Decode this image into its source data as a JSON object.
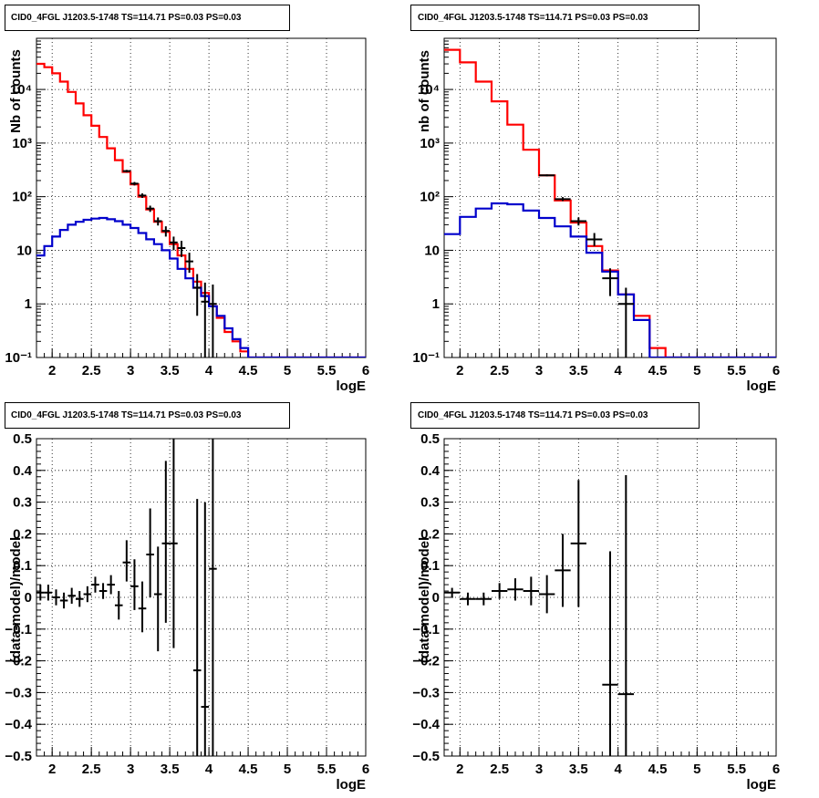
{
  "chart_data": [
    {
      "type": "line",
      "title": "CID0_4FGL J1203.5-1748 TS=114.71 PS=0.03 PS=0.03",
      "xlabel": "logE",
      "ylabel": "Nb of counts",
      "xlim": [
        1.8,
        6.0
      ],
      "ylim": [
        0.1,
        90000
      ],
      "yscale": "log",
      "grid": true,
      "xticks": [
        "2",
        "2.5",
        "3",
        "3.5",
        "4",
        "4.5",
        "5",
        "5.5",
        "6"
      ],
      "yticks": [
        "10⁻¹",
        "1",
        "10",
        "10²",
        "10³",
        "10⁴"
      ],
      "bin_edges": [
        1.8,
        1.9,
        2.0,
        2.1,
        2.2,
        2.3,
        2.4,
        2.5,
        2.6,
        2.7,
        2.8,
        2.9,
        3.0,
        3.1,
        3.2,
        3.3,
        3.4,
        3.5,
        3.6,
        3.7,
        3.8,
        3.9,
        4.0,
        4.1,
        4.2,
        4.3,
        4.4,
        4.5,
        6.0
      ],
      "series": [
        {
          "color": "#ff0000",
          "values": [
            30000,
            26000,
            20000,
            14000,
            9000,
            5500,
            3300,
            2100,
            1300,
            800,
            480,
            290,
            170,
            100,
            58,
            34,
            22,
            13,
            8,
            4.5,
            2.6,
            1.6,
            0.9,
            0.55,
            0.3,
            0.2,
            0.13,
            0.1
          ]
        },
        {
          "color": "#0000cc",
          "values": [
            8,
            12,
            18,
            24,
            30,
            34,
            37,
            39,
            40,
            38,
            35,
            30,
            26,
            21,
            16,
            13,
            10,
            7,
            4.5,
            3,
            2,
            1.4,
            0.9,
            0.6,
            0.35,
            0.22,
            0.15,
            0.1
          ]
        }
      ],
      "points": [
        {
          "x": 2.95,
          "y": 300,
          "xerr": 0.05,
          "lo": 285,
          "hi": 316
        },
        {
          "x": 3.05,
          "y": 175,
          "xerr": 0.05,
          "lo": 162,
          "hi": 188
        },
        {
          "x": 3.15,
          "y": 105,
          "xerr": 0.05,
          "lo": 95,
          "hi": 115
        },
        {
          "x": 3.25,
          "y": 60,
          "xerr": 0.05,
          "lo": 52,
          "hi": 68
        },
        {
          "x": 3.35,
          "y": 35,
          "xerr": 0.05,
          "lo": 29,
          "hi": 41
        },
        {
          "x": 3.45,
          "y": 23,
          "xerr": 0.05,
          "lo": 18,
          "hi": 28
        },
        {
          "x": 3.55,
          "y": 14,
          "xerr": 0.05,
          "lo": 10,
          "hi": 18
        },
        {
          "x": 3.65,
          "y": 11,
          "xerr": 0.05,
          "lo": 7.5,
          "hi": 15
        },
        {
          "x": 3.75,
          "y": 6.2,
          "xerr": 0.05,
          "lo": 3.8,
          "hi": 9
        },
        {
          "x": 3.85,
          "y": 2.0,
          "xerr": 0.05,
          "lo": 0.6,
          "hi": 3.6
        },
        {
          "x": 3.95,
          "y": 1.1,
          "xerr": 0.05,
          "lo": 0.1,
          "hi": 2.5
        },
        {
          "x": 4.05,
          "y": 1.0,
          "xerr": 0.05,
          "lo": 0.1,
          "hi": 2.3
        }
      ]
    },
    {
      "type": "line",
      "title": "CID0_4FGL J1203.5-1748 TS=114.71 PS=0.03 PS=0.03",
      "xlabel": "logE",
      "ylabel": "nb of counts",
      "xlim": [
        1.8,
        6.0
      ],
      "ylim": [
        0.1,
        90000
      ],
      "yscale": "log",
      "grid": true,
      "xticks": [
        "2",
        "2.5",
        "3",
        "3.5",
        "4",
        "4.5",
        "5",
        "5.5",
        "6"
      ],
      "yticks": [
        "10⁻¹",
        "1",
        "10",
        "10²",
        "10³",
        "10⁴"
      ],
      "bin_edges": [
        1.8,
        2.0,
        2.2,
        2.4,
        2.6,
        2.8,
        3.0,
        3.2,
        3.4,
        3.6,
        3.8,
        4.0,
        4.2,
        4.4,
        4.6,
        6.0
      ],
      "series": [
        {
          "color": "#ff0000",
          "values": [
            55000,
            32000,
            14000,
            6000,
            2200,
            750,
            250,
            85,
            33,
            12,
            4.2,
            1.5,
            0.6,
            0.15,
            0.1
          ]
        },
        {
          "color": "#0000cc",
          "values": [
            20,
            42,
            60,
            75,
            72,
            55,
            40,
            28,
            18,
            9,
            4,
            1.5,
            0.5,
            0.1,
            0.1
          ]
        }
      ],
      "points": [
        {
          "x": 3.1,
          "y": 250,
          "xerr": 0.1,
          "lo": 240,
          "hi": 260
        },
        {
          "x": 3.3,
          "y": 90,
          "xerr": 0.1,
          "lo": 83,
          "hi": 98
        },
        {
          "x": 3.5,
          "y": 35,
          "xerr": 0.1,
          "lo": 29,
          "hi": 41
        },
        {
          "x": 3.7,
          "y": 16,
          "xerr": 0.1,
          "lo": 12,
          "hi": 21
        },
        {
          "x": 3.9,
          "y": 3.0,
          "xerr": 0.1,
          "lo": 1.4,
          "hi": 4.6
        },
        {
          "x": 4.1,
          "y": 1.0,
          "xerr": 0.1,
          "lo": 0.1,
          "hi": 2.0
        }
      ]
    },
    {
      "type": "scatter",
      "title": "CID0_4FGL J1203.5-1748 TS=114.71 PS=0.03 PS=0.03",
      "xlabel": "logE",
      "ylabel": "(data-model)/model",
      "xlim": [
        1.8,
        6.0
      ],
      "ylim": [
        -0.5,
        0.5
      ],
      "grid": true,
      "xticks": [
        "2",
        "2.5",
        "3",
        "3.5",
        "4",
        "4.5",
        "5",
        "5.5",
        "6"
      ],
      "yticks": [
        "−0.5",
        "−0.4",
        "−0.3",
        "−0.2",
        "−0.1",
        "0",
        "0.1",
        "0.2",
        "0.3",
        "0.4",
        "0.5"
      ],
      "points": [
        {
          "x": 1.85,
          "y": 0.015,
          "xerr": 0.05,
          "lo": -0.01,
          "hi": 0.04
        },
        {
          "x": 1.95,
          "y": 0.015,
          "xerr": 0.05,
          "lo": -0.01,
          "hi": 0.04
        },
        {
          "x": 2.05,
          "y": 0.0,
          "xerr": 0.05,
          "lo": -0.025,
          "hi": 0.025
        },
        {
          "x": 2.15,
          "y": -0.01,
          "xerr": 0.05,
          "lo": -0.035,
          "hi": 0.015
        },
        {
          "x": 2.25,
          "y": 0.005,
          "xerr": 0.05,
          "lo": -0.02,
          "hi": 0.03
        },
        {
          "x": 2.35,
          "y": -0.005,
          "xerr": 0.05,
          "lo": -0.03,
          "hi": 0.02
        },
        {
          "x": 2.45,
          "y": 0.01,
          "xerr": 0.05,
          "lo": -0.015,
          "hi": 0.035
        },
        {
          "x": 2.55,
          "y": 0.04,
          "xerr": 0.05,
          "lo": 0.015,
          "hi": 0.065
        },
        {
          "x": 2.65,
          "y": 0.02,
          "xerr": 0.05,
          "lo": -0.005,
          "hi": 0.045
        },
        {
          "x": 2.75,
          "y": 0.04,
          "xerr": 0.05,
          "lo": 0.01,
          "hi": 0.07
        },
        {
          "x": 2.85,
          "y": -0.025,
          "xerr": 0.05,
          "lo": -0.07,
          "hi": 0.02
        },
        {
          "x": 2.95,
          "y": 0.11,
          "xerr": 0.05,
          "lo": 0.05,
          "hi": 0.18
        },
        {
          "x": 3.05,
          "y": 0.035,
          "xerr": 0.05,
          "lo": -0.04,
          "hi": 0.12
        },
        {
          "x": 3.15,
          "y": -0.035,
          "xerr": 0.05,
          "lo": -0.11,
          "hi": 0.05
        },
        {
          "x": 3.25,
          "y": 0.135,
          "xerr": 0.05,
          "lo": 0.0,
          "hi": 0.28
        },
        {
          "x": 3.35,
          "y": 0.01,
          "xerr": 0.05,
          "lo": -0.17,
          "hi": 0.16
        },
        {
          "x": 3.45,
          "y": 0.17,
          "xerr": 0.05,
          "lo": -0.08,
          "hi": 0.43
        },
        {
          "x": 3.55,
          "y": 0.17,
          "xerr": 0.05,
          "lo": -0.16,
          "hi": 0.5
        },
        {
          "x": 3.85,
          "y": -0.23,
          "xerr": 0.05,
          "lo": -0.5,
          "hi": 0.31
        },
        {
          "x": 3.95,
          "y": -0.345,
          "xerr": 0.05,
          "lo": -0.5,
          "hi": 0.3
        },
        {
          "x": 4.05,
          "y": 0.09,
          "xerr": 0.05,
          "lo": -0.5,
          "hi": 0.5
        }
      ]
    },
    {
      "type": "scatter",
      "title": "CID0_4FGL J1203.5-1748 TS=114.71 PS=0.03 PS=0.03",
      "xlabel": "logE",
      "ylabel": "(data-model)/model",
      "xlim": [
        1.8,
        6.0
      ],
      "ylim": [
        -0.5,
        0.5
      ],
      "grid": true,
      "xticks": [
        "2",
        "2.5",
        "3",
        "3.5",
        "4",
        "4.5",
        "5",
        "5.5",
        "6"
      ],
      "yticks": [
        "−0.5",
        "−0.4",
        "−0.3",
        "−0.2",
        "−0.1",
        "0",
        "0.1",
        "0.2",
        "0.3",
        "0.4",
        "0.5"
      ],
      "points": [
        {
          "x": 1.9,
          "y": 0.015,
          "xerr": 0.1,
          "lo": 0.0,
          "hi": 0.03
        },
        {
          "x": 2.1,
          "y": -0.005,
          "xerr": 0.1,
          "lo": -0.025,
          "hi": 0.015
        },
        {
          "x": 2.3,
          "y": -0.005,
          "xerr": 0.1,
          "lo": -0.025,
          "hi": 0.015
        },
        {
          "x": 2.5,
          "y": 0.02,
          "xerr": 0.1,
          "lo": -0.005,
          "hi": 0.045
        },
        {
          "x": 2.7,
          "y": 0.025,
          "xerr": 0.1,
          "lo": -0.01,
          "hi": 0.06
        },
        {
          "x": 2.9,
          "y": 0.02,
          "xerr": 0.1,
          "lo": -0.025,
          "hi": 0.065
        },
        {
          "x": 3.1,
          "y": 0.01,
          "xerr": 0.1,
          "lo": -0.05,
          "hi": 0.07
        },
        {
          "x": 3.3,
          "y": 0.085,
          "xerr": 0.1,
          "lo": -0.03,
          "hi": 0.2
        },
        {
          "x": 3.5,
          "y": 0.17,
          "xerr": 0.1,
          "lo": -0.03,
          "hi": 0.37
        },
        {
          "x": 3.9,
          "y": -0.275,
          "xerr": 0.1,
          "lo": -0.5,
          "hi": 0.145
        },
        {
          "x": 4.1,
          "y": -0.305,
          "xerr": 0.1,
          "lo": -0.5,
          "hi": 0.385
        }
      ]
    }
  ]
}
